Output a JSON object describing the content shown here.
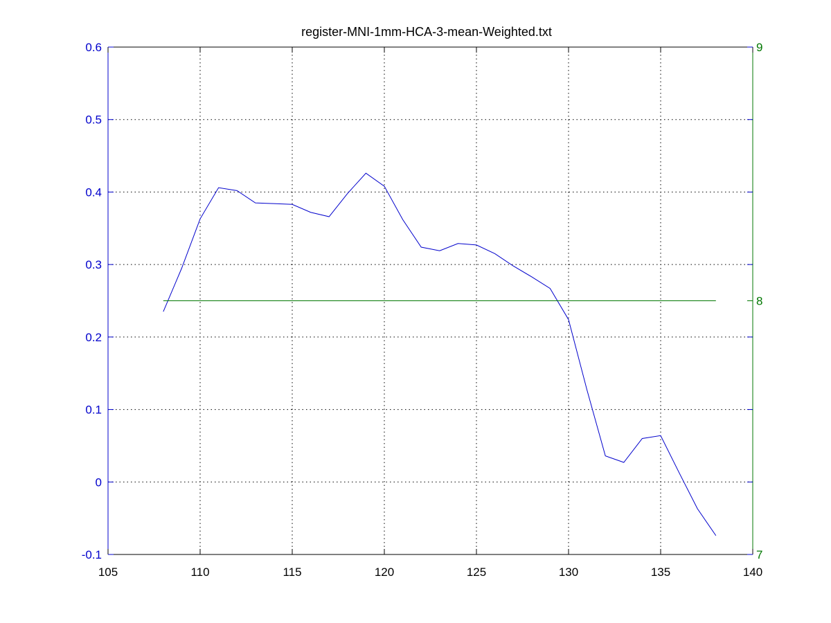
{
  "chart_data": {
    "type": "line",
    "title": "register-MNI-1mm-HCA-3-mean-Weighted.txt",
    "xlabel": "",
    "ylabel": "",
    "grid": true,
    "colors": {
      "left_axis": "#0000cc",
      "right_axis": "#007700",
      "x_axis": "#000000",
      "grid": "#000000"
    },
    "x_axis": {
      "range": [
        105,
        140
      ],
      "ticks": [
        105,
        110,
        115,
        120,
        125,
        130,
        135,
        140
      ],
      "tick_labels": [
        "105",
        "110",
        "115",
        "120",
        "125",
        "130",
        "135",
        "140"
      ]
    },
    "y_left": {
      "range": [
        -0.1,
        0.6
      ],
      "ticks": [
        -0.1,
        0,
        0.1,
        0.2,
        0.3,
        0.4,
        0.5,
        0.6
      ],
      "tick_labels": [
        "-0.1",
        "0",
        "0.1",
        "0.2",
        "0.3",
        "0.4",
        "0.5",
        "0.6"
      ]
    },
    "y_right": {
      "range": [
        7,
        9
      ],
      "ticks": [
        7,
        8,
        9
      ],
      "tick_labels": [
        "7",
        "8",
        "9"
      ]
    },
    "series": [
      {
        "axis": "left",
        "color": "#0000cc",
        "x": [
          108,
          109,
          110,
          111,
          112,
          113,
          114,
          115,
          116,
          117,
          118,
          119,
          120,
          121,
          122,
          123,
          124,
          125,
          126,
          127,
          128,
          129,
          130,
          131,
          132,
          133,
          134,
          135,
          136,
          137,
          138
        ],
        "y": [
          0.235,
          0.295,
          0.363,
          0.406,
          0.402,
          0.385,
          0.384,
          0.383,
          0.372,
          0.366,
          0.398,
          0.426,
          0.408,
          0.362,
          0.324,
          0.319,
          0.329,
          0.327,
          0.315,
          0.298,
          0.283,
          0.267,
          0.224,
          0.127,
          0.036,
          0.027,
          0.06,
          0.064,
          0.013,
          -0.037,
          -0.074
        ]
      },
      {
        "axis": "right",
        "color": "#007700",
        "x": [
          108,
          138
        ],
        "y": [
          8,
          8
        ]
      }
    ]
  }
}
